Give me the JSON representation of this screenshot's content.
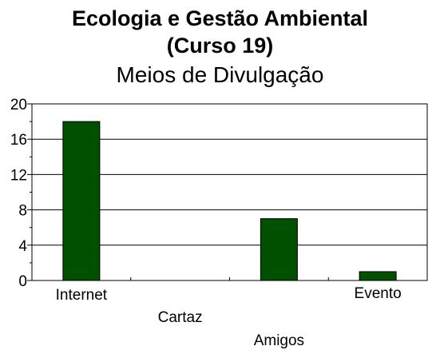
{
  "chart_data": {
    "type": "bar",
    "title": "Ecologia e Gestão Ambiental",
    "title_line2": "(Curso 19)",
    "subtitle": "Meios de Divulgação",
    "categories": [
      "Internet",
      "Cartaz",
      "Amigos",
      "Evento"
    ],
    "values": [
      18,
      0,
      7,
      1
    ],
    "ylim": [
      0,
      20
    ],
    "yticks": [
      0,
      4,
      8,
      12,
      16,
      20
    ],
    "grid": true,
    "bar_color": "#005000",
    "xlabel": "",
    "ylabel": ""
  }
}
